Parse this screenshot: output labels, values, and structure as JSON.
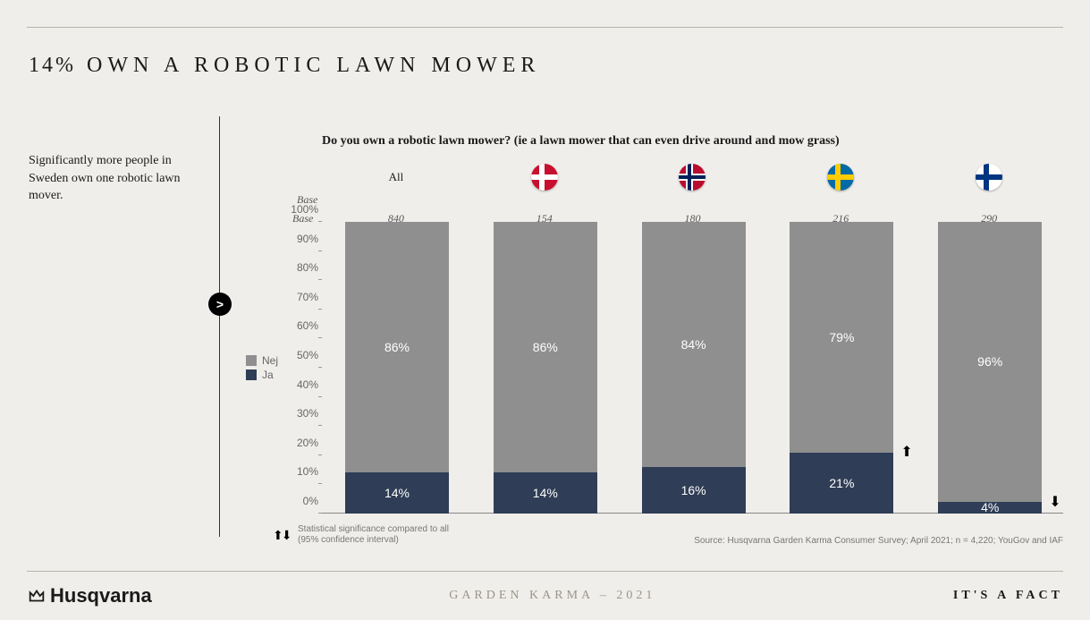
{
  "title_pct": "14%",
  "title_rest": "OWN A ROBOTIC LAWN MOWER",
  "side_text": "Significantly more people in Sweden own one robotic lawn mover.",
  "bullet": ">",
  "chart": {
    "type": "stacked-bar",
    "question": "Do you own a robotic lawn mower? (ie a lawn mower that can even drive around and mow grass)",
    "base_label": "Base",
    "ylim": [
      0,
      100
    ],
    "ytick_step": 10,
    "y_suffix": "%",
    "colors": {
      "nej": "#8f8f8f",
      "ja": "#2f3d56"
    },
    "background": "#f0eeea",
    "legend": [
      {
        "key": "nej",
        "label": "Nej",
        "color": "#8f8f8f"
      },
      {
        "key": "ja",
        "label": "Ja",
        "color": "#2f3d56"
      }
    ],
    "columns": [
      {
        "label": "All",
        "flag": null,
        "base": "840",
        "ja": 14,
        "nej": 86,
        "sig": null
      },
      {
        "label": "",
        "flag": "dk",
        "base": "154",
        "ja": 14,
        "nej": 86,
        "sig": null
      },
      {
        "label": "",
        "flag": "no",
        "base": "180",
        "ja": 16,
        "nej": 84,
        "sig": null
      },
      {
        "label": "",
        "flag": "se",
        "base": "216",
        "ja": 21,
        "nej": 79,
        "sig": "up"
      },
      {
        "label": "",
        "flag": "fi",
        "base": "290",
        "ja": 4,
        "nej": 96,
        "sig": "down"
      }
    ],
    "footnote_arrows": "⬆⬇",
    "footnote": "Statistical significance compared to all\n(95% confidence interval)",
    "source": "Source: Husqvarna Garden Karma Consumer Survey; April 2021; n = 4,220; YouGov and IAF"
  },
  "footer": {
    "brand": "Husqvarna",
    "center": "GARDEN KARMA – 2021",
    "right": "IT'S A FACT"
  }
}
